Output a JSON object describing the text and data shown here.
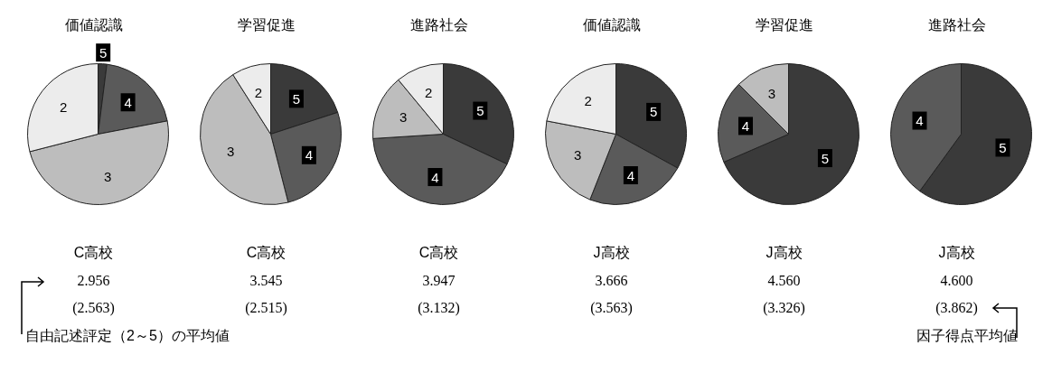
{
  "chart_data": [
    {
      "type": "pie",
      "title": "価値認識",
      "xlabel": "C高校",
      "categories": [
        "5",
        "4",
        "3",
        "2"
      ],
      "values": [
        2,
        20,
        49,
        29
      ],
      "colors": [
        "#3a3a3a",
        "#5a5a5a",
        "#bdbdbd",
        "#ececec"
      ],
      "annotations": [
        "2.956",
        "(2.563)",
        "自由記述評定（2～5）の平均値"
      ]
    },
    {
      "type": "pie",
      "title": "学習促進",
      "xlabel": "C高校",
      "categories": [
        "5",
        "4",
        "3",
        "2"
      ],
      "values": [
        20,
        26,
        45,
        9
      ],
      "colors": [
        "#3a3a3a",
        "#5a5a5a",
        "#bdbdbd",
        "#ececec"
      ],
      "annotations": [
        "3.545",
        "(2.515)"
      ]
    },
    {
      "type": "pie",
      "title": "進路社会",
      "xlabel": "C高校",
      "categories": [
        "5",
        "4",
        "3",
        "2"
      ],
      "values": [
        32,
        42,
        15,
        11
      ],
      "colors": [
        "#3a3a3a",
        "#5a5a5a",
        "#bdbdbd",
        "#ececec"
      ],
      "annotations": [
        "3.947",
        "(3.132)"
      ]
    },
    {
      "type": "pie",
      "title": "価値認識",
      "xlabel": "J高校",
      "categories": [
        "5",
        "4",
        "3",
        "2"
      ],
      "values": [
        33,
        23,
        22,
        22
      ],
      "colors": [
        "#3a3a3a",
        "#5a5a5a",
        "#bdbdbd",
        "#ececec"
      ],
      "annotations": [
        "3.666",
        "(3.563)"
      ]
    },
    {
      "type": "pie",
      "title": "学習促進",
      "xlabel": "J高校",
      "categories": [
        "5",
        "4",
        "3"
      ],
      "values": [
        68.5,
        19,
        12.5
      ],
      "colors": [
        "#3a3a3a",
        "#5a5a5a",
        "#bdbdbd"
      ],
      "annotations": [
        "4.560",
        "(3.326)"
      ]
    },
    {
      "type": "pie",
      "title": "進路社会",
      "xlabel": "J高校",
      "categories": [
        "5",
        "4"
      ],
      "values": [
        60,
        40
      ],
      "colors": [
        "#3a3a3a",
        "#5a5a5a"
      ],
      "annotations": [
        "4.600",
        "(3.862)",
        "因子得点平均値"
      ]
    }
  ]
}
